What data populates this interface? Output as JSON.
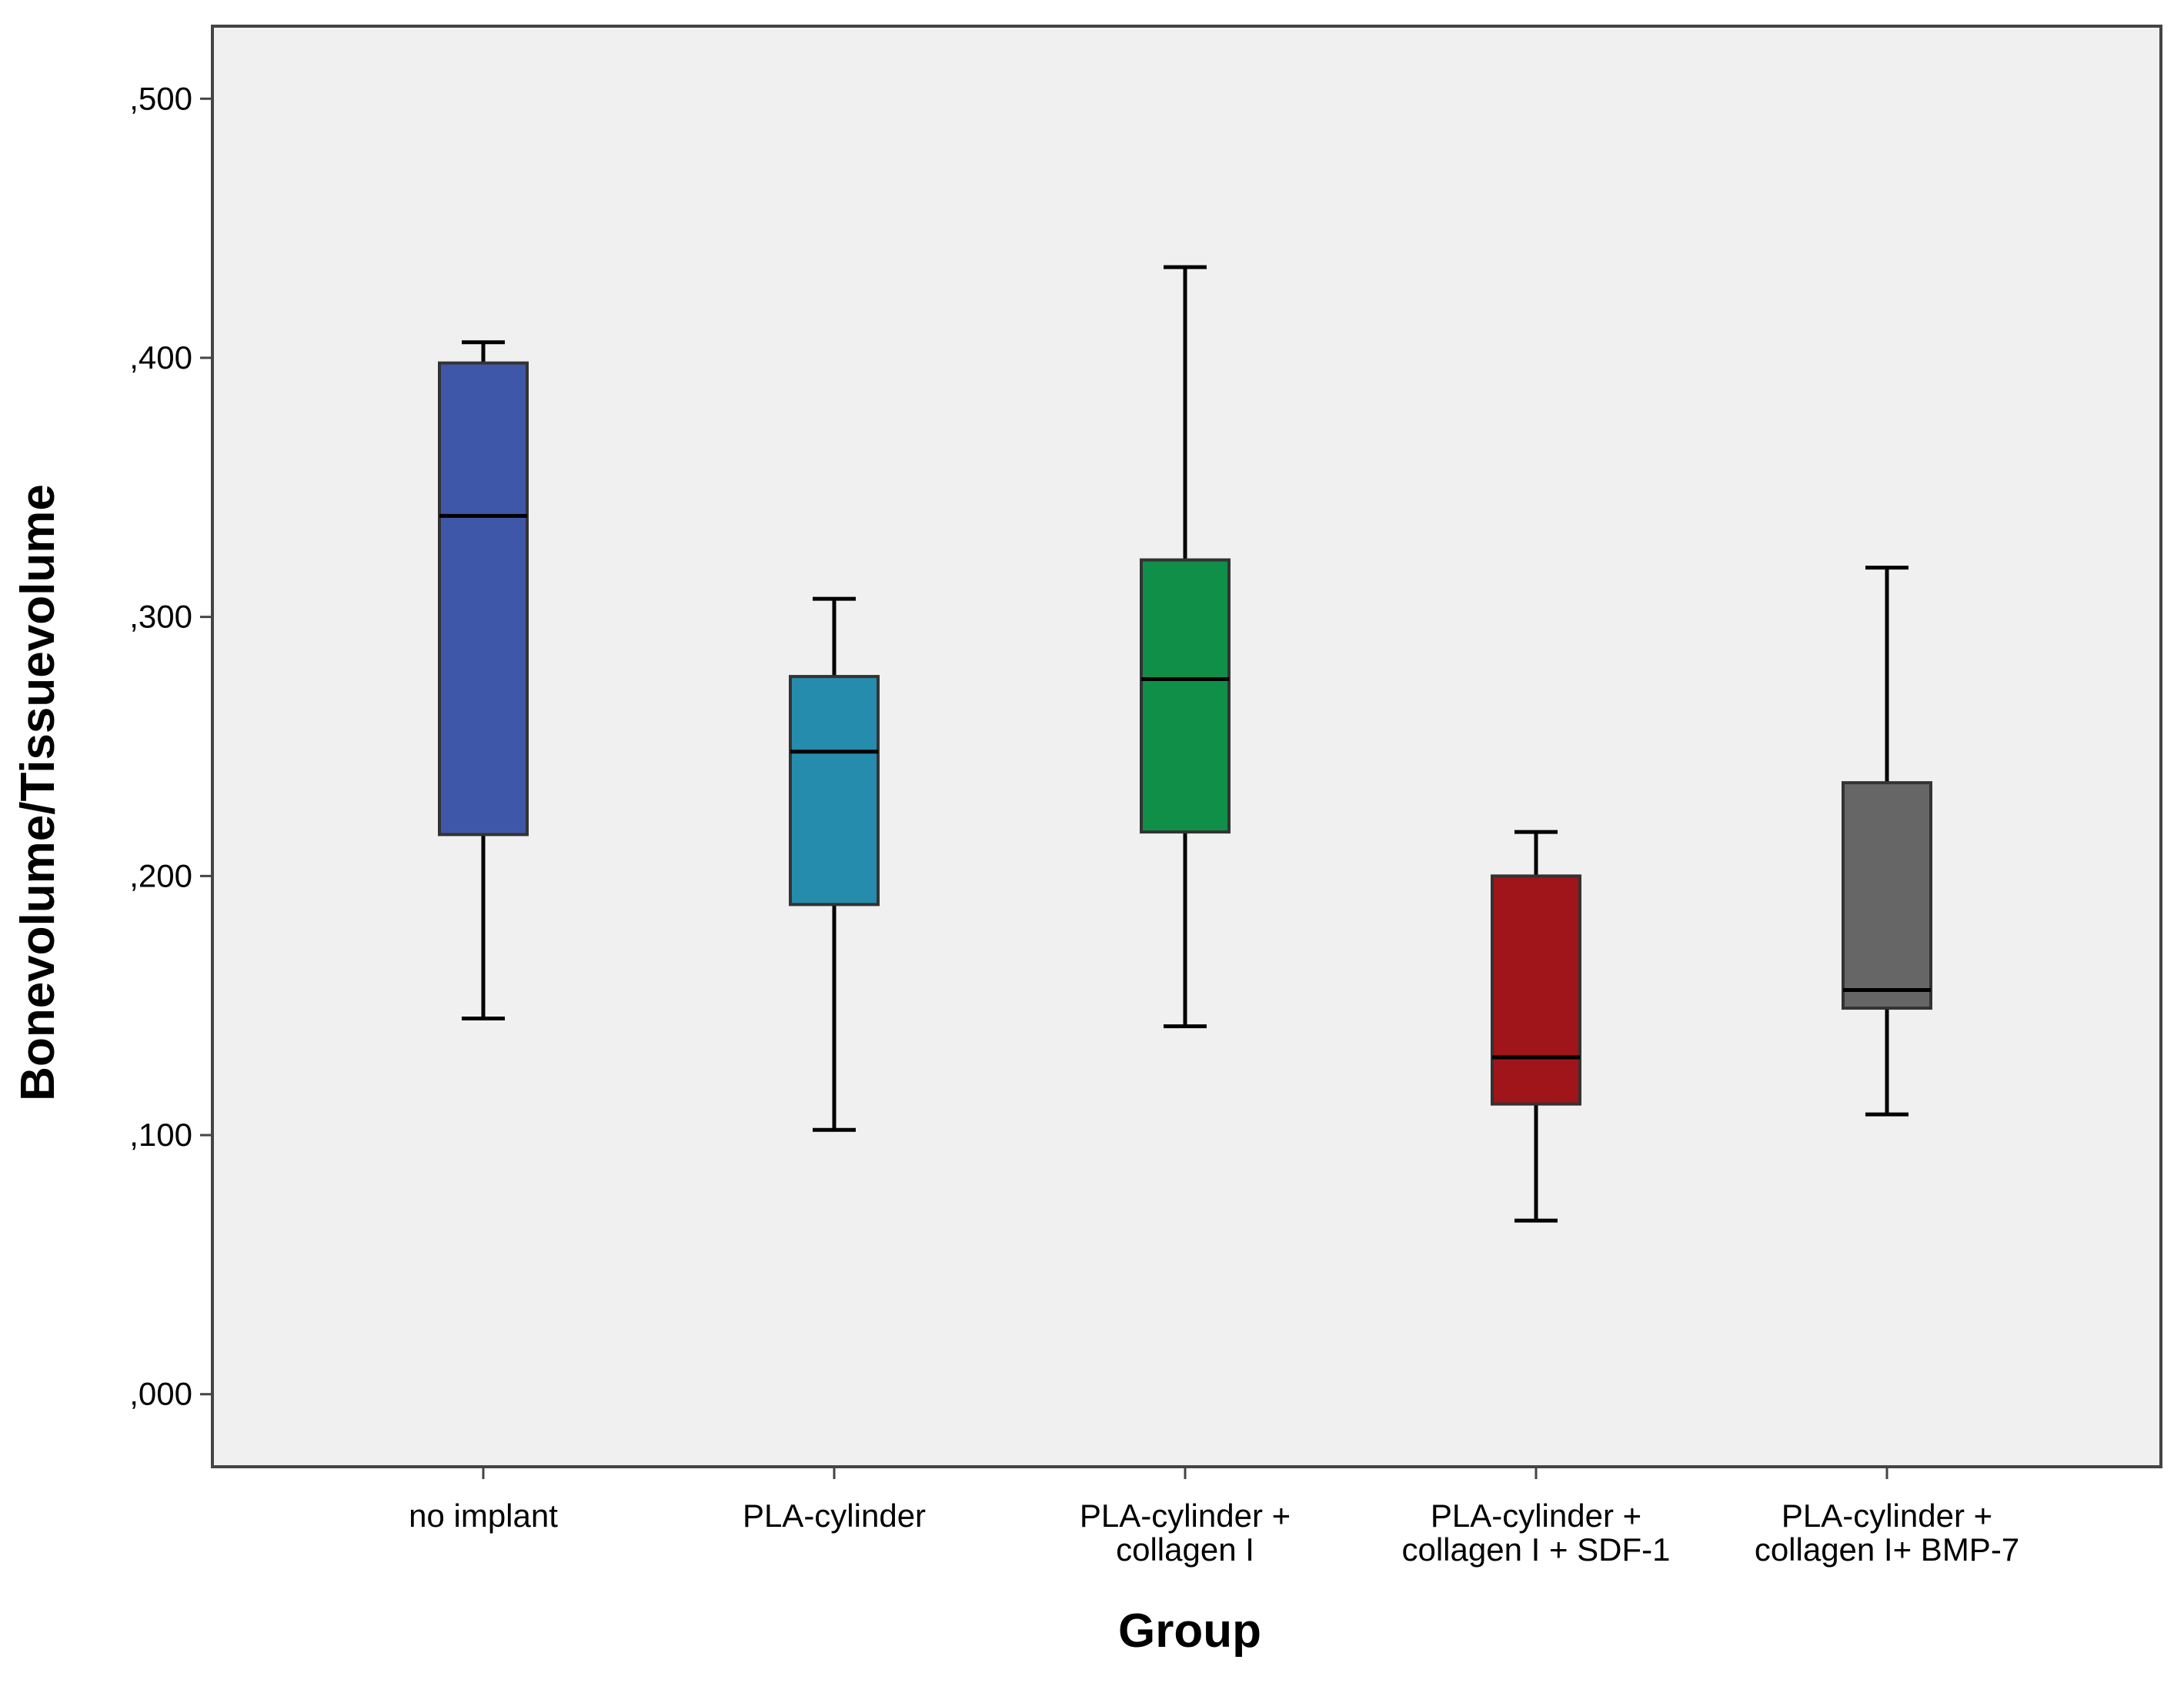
{
  "chart_data": {
    "type": "boxplot",
    "title": "",
    "xlabel": "Group",
    "ylabel": "Bonevolume/Tissuevolume",
    "ylim": [
      -0.028,
      0.528
    ],
    "yticks": [
      0.0,
      0.1,
      0.2,
      0.3,
      0.4,
      0.5
    ],
    "ytick_labels": [
      ",000",
      ",100",
      ",200",
      ",300",
      ",400",
      ",500"
    ],
    "grid": false,
    "background": "#f0f0f0",
    "categories": [
      {
        "label_lines": [
          "no implant"
        ],
        "color": "#3f57a9",
        "whisker_low": 0.145,
        "q1": 0.216,
        "median": 0.339,
        "q3": 0.398,
        "whisker_high": 0.406
      },
      {
        "label_lines": [
          "PLA-cylinder"
        ],
        "color": "#268cad",
        "whisker_low": 0.102,
        "q1": 0.189,
        "median": 0.248,
        "q3": 0.277,
        "whisker_high": 0.307
      },
      {
        "label_lines": [
          "PLA-cylinder +",
          "collagen I"
        ],
        "color": "#108f49",
        "whisker_low": 0.142,
        "q1": 0.217,
        "median": 0.276,
        "q3": 0.322,
        "whisker_high": 0.435
      },
      {
        "label_lines": [
          "PLA-cylinder +",
          "collagen I + SDF-1"
        ],
        "color": "#a0151a",
        "whisker_low": 0.067,
        "q1": 0.112,
        "median": 0.13,
        "q3": 0.2,
        "whisker_high": 0.217
      },
      {
        "label_lines": [
          "PLA-cylinder +",
          "collagen I+ BMP-7"
        ],
        "color": "#666666",
        "whisker_low": 0.108,
        "q1": 0.149,
        "median": 0.156,
        "q3": 0.236,
        "whisker_high": 0.319
      }
    ]
  }
}
